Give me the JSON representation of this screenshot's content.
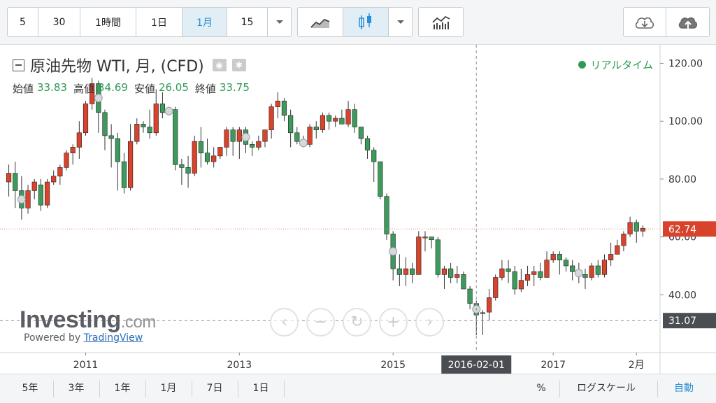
{
  "toolbar": {
    "intervals": [
      "5",
      "30",
      "1時間",
      "1日",
      "1月",
      "15"
    ],
    "active_interval": "1月",
    "dropdown_icon": "chevron-down-icon",
    "chart_type_icons": [
      "line-chart-icon",
      "candlestick-icon"
    ],
    "indicator_icon": "indicators-icon",
    "download_icon": "cloud-download-icon",
    "upload_icon": "cloud-upload-icon"
  },
  "legend": {
    "title": "原油先物 WTI, 月, (CFD)",
    "open_label": "始値",
    "open_value": "33.83",
    "high_label": "高値",
    "high_value": "34.69",
    "low_label": "安値",
    "low_value": "26.05",
    "close_label": "終値",
    "close_value": "33.75"
  },
  "realtime_label": "リアルタイム",
  "watermark": {
    "brand": "Investing",
    "brand_suffix": ".com",
    "powered_by": "Powered by",
    "powered_link": "TradingView"
  },
  "bottombar": {
    "ranges": [
      "5年",
      "3年",
      "1年",
      "1月",
      "7日",
      "1日"
    ],
    "percent": "%",
    "log_scale": "ログスケール",
    "auto": "自動"
  },
  "colors": {
    "up": "#d9432b",
    "down": "#3d9a5c",
    "accent": "#2a8fd6"
  },
  "chart_data": {
    "type": "candlestick",
    "y_axis_labels": [
      "120.00",
      "100.00",
      "80.00",
      "60.00",
      "40.00"
    ],
    "y_ticks": [
      120,
      100,
      80,
      60,
      40
    ],
    "ylim": [
      20,
      124
    ],
    "x_axis_labels": [
      "2011",
      "2013",
      "2015",
      "2016-02-01",
      "2017",
      "2月"
    ],
    "crosshair_label": "2016-02-01",
    "last_price": 62.74,
    "last_price_label": "62.74",
    "crosshair_price": 31.07,
    "crosshair_price_label": "31.07",
    "series": [
      {
        "o": 79,
        "h": 85,
        "l": 74,
        "c": 82
      },
      {
        "o": 82,
        "h": 86,
        "l": 70,
        "c": 76
      },
      {
        "o": 76,
        "h": 81,
        "l": 66,
        "c": 70
      },
      {
        "o": 70,
        "h": 78,
        "l": 68,
        "c": 76
      },
      {
        "o": 76,
        "h": 80,
        "l": 73,
        "c": 79
      },
      {
        "o": 78,
        "h": 80,
        "l": 69,
        "c": 71
      },
      {
        "o": 71,
        "h": 80,
        "l": 70,
        "c": 79
      },
      {
        "o": 79,
        "h": 83,
        "l": 78,
        "c": 81
      },
      {
        "o": 81,
        "h": 85,
        "l": 78,
        "c": 84
      },
      {
        "o": 84,
        "h": 90,
        "l": 83,
        "c": 89
      },
      {
        "o": 89,
        "h": 92,
        "l": 85,
        "c": 91
      },
      {
        "o": 91,
        "h": 100,
        "l": 87,
        "c": 96
      },
      {
        "o": 96,
        "h": 107,
        "l": 95,
        "c": 106
      },
      {
        "o": 106,
        "h": 115,
        "l": 104,
        "c": 113
      },
      {
        "o": 113,
        "h": 114,
        "l": 96,
        "c": 103
      },
      {
        "o": 103,
        "h": 104,
        "l": 90,
        "c": 95
      },
      {
        "o": 95,
        "h": 99,
        "l": 84,
        "c": 94
      },
      {
        "o": 94,
        "h": 96,
        "l": 76,
        "c": 86
      },
      {
        "o": 86,
        "h": 89,
        "l": 75,
        "c": 77
      },
      {
        "o": 77,
        "h": 99,
        "l": 76,
        "c": 93
      },
      {
        "o": 93,
        "h": 101,
        "l": 92,
        "c": 99
      },
      {
        "o": 99,
        "h": 100,
        "l": 96,
        "c": 98
      },
      {
        "o": 98,
        "h": 104,
        "l": 94,
        "c": 96
      },
      {
        "o": 96,
        "h": 111,
        "l": 95,
        "c": 106
      },
      {
        "o": 106,
        "h": 110,
        "l": 101,
        "c": 103
      },
      {
        "o": 103,
        "h": 105,
        "l": 102,
        "c": 104
      },
      {
        "o": 104,
        "h": 105,
        "l": 83,
        "c": 85
      },
      {
        "o": 85,
        "h": 87,
        "l": 78,
        "c": 84
      },
      {
        "o": 84,
        "h": 88,
        "l": 77,
        "c": 82
      },
      {
        "o": 82,
        "h": 95,
        "l": 81,
        "c": 93
      },
      {
        "o": 93,
        "h": 98,
        "l": 84,
        "c": 89
      },
      {
        "o": 89,
        "h": 94,
        "l": 85,
        "c": 86
      },
      {
        "o": 86,
        "h": 91,
        "l": 84,
        "c": 88
      },
      {
        "o": 88,
        "h": 91,
        "l": 87,
        "c": 91
      },
      {
        "o": 91,
        "h": 98,
        "l": 88,
        "c": 97
      },
      {
        "o": 97,
        "h": 98,
        "l": 88,
        "c": 93
      },
      {
        "o": 93,
        "h": 98,
        "l": 87,
        "c": 97
      },
      {
        "o": 97,
        "h": 98,
        "l": 89,
        "c": 92
      },
      {
        "o": 92,
        "h": 93,
        "l": 88,
        "c": 91
      },
      {
        "o": 91,
        "h": 95,
        "l": 90,
        "c": 93
      },
      {
        "o": 93,
        "h": 97,
        "l": 91,
        "c": 97
      },
      {
        "o": 97,
        "h": 106,
        "l": 94,
        "c": 105
      },
      {
        "o": 105,
        "h": 110,
        "l": 101,
        "c": 107
      },
      {
        "o": 107,
        "h": 108,
        "l": 100,
        "c": 102
      },
      {
        "o": 102,
        "h": 104,
        "l": 91,
        "c": 96
      },
      {
        "o": 96,
        "h": 98,
        "l": 92,
        "c": 93
      },
      {
        "o": 93,
        "h": 95,
        "l": 91,
        "c": 92
      },
      {
        "o": 92,
        "h": 99,
        "l": 91,
        "c": 98
      },
      {
        "o": 98,
        "h": 100,
        "l": 94,
        "c": 97
      },
      {
        "o": 97,
        "h": 103,
        "l": 96,
        "c": 102
      },
      {
        "o": 102,
        "h": 103,
        "l": 97,
        "c": 100
      },
      {
        "o": 100,
        "h": 102,
        "l": 98,
        "c": 101
      },
      {
        "o": 101,
        "h": 104,
        "l": 99,
        "c": 99
      },
      {
        "o": 99,
        "h": 107,
        "l": 98,
        "c": 104
      },
      {
        "o": 104,
        "h": 106,
        "l": 96,
        "c": 98
      },
      {
        "o": 98,
        "h": 98,
        "l": 92,
        "c": 94
      },
      {
        "o": 94,
        "h": 95,
        "l": 87,
        "c": 90
      },
      {
        "o": 90,
        "h": 91,
        "l": 79,
        "c": 86
      },
      {
        "o": 86,
        "h": 86,
        "l": 73,
        "c": 74
      },
      {
        "o": 74,
        "h": 75,
        "l": 59,
        "c": 61
      },
      {
        "o": 61,
        "h": 62,
        "l": 45,
        "c": 49
      },
      {
        "o": 49,
        "h": 54,
        "l": 43,
        "c": 47
      },
      {
        "o": 47,
        "h": 53,
        "l": 43,
        "c": 49
      },
      {
        "o": 49,
        "h": 51,
        "l": 44,
        "c": 47
      },
      {
        "o": 47,
        "h": 62,
        "l": 47,
        "c": 60
      },
      {
        "o": 60,
        "h": 62,
        "l": 55,
        "c": 60
      },
      {
        "o": 60,
        "h": 60,
        "l": 56,
        "c": 59
      },
      {
        "o": 59,
        "h": 60,
        "l": 46,
        "c": 47
      },
      {
        "o": 47,
        "h": 50,
        "l": 42,
        "c": 49
      },
      {
        "o": 49,
        "h": 51,
        "l": 44,
        "c": 46
      },
      {
        "o": 46,
        "h": 50,
        "l": 44,
        "c": 47
      },
      {
        "o": 47,
        "h": 48,
        "l": 43,
        "c": 42
      },
      {
        "o": 42,
        "h": 43,
        "l": 35,
        "c": 37
      },
      {
        "o": 37,
        "h": 38,
        "l": 26,
        "c": 33
      },
      {
        "o": 33.83,
        "h": 34.69,
        "l": 26.05,
        "c": 33.75
      },
      {
        "o": 34,
        "h": 42,
        "l": 31,
        "c": 39
      },
      {
        "o": 39,
        "h": 47,
        "l": 38,
        "c": 46
      },
      {
        "o": 46,
        "h": 52,
        "l": 45,
        "c": 49
      },
      {
        "o": 49,
        "h": 52,
        "l": 44,
        "c": 48
      },
      {
        "o": 48,
        "h": 50,
        "l": 40,
        "c": 42
      },
      {
        "o": 42,
        "h": 49,
        "l": 41,
        "c": 45
      },
      {
        "o": 45,
        "h": 50,
        "l": 43,
        "c": 47
      },
      {
        "o": 47,
        "h": 50,
        "l": 43,
        "c": 48
      },
      {
        "o": 48,
        "h": 51,
        "l": 45,
        "c": 46
      },
      {
        "o": 46,
        "h": 55,
        "l": 46,
        "c": 52
      },
      {
        "o": 52,
        "h": 55,
        "l": 51,
        "c": 54
      },
      {
        "o": 54,
        "h": 55,
        "l": 47,
        "c": 52
      },
      {
        "o": 52,
        "h": 53,
        "l": 48,
        "c": 50
      },
      {
        "o": 50,
        "h": 52,
        "l": 45,
        "c": 48
      },
      {
        "o": 48,
        "h": 51,
        "l": 44,
        "c": 47
      },
      {
        "o": 47,
        "h": 49,
        "l": 42,
        "c": 46
      },
      {
        "o": 46,
        "h": 51,
        "l": 45,
        "c": 50
      },
      {
        "o": 50,
        "h": 52,
        "l": 46,
        "c": 47
      },
      {
        "o": 47,
        "h": 54,
        "l": 46,
        "c": 52
      },
      {
        "o": 52,
        "h": 58,
        "l": 50,
        "c": 54
      },
      {
        "o": 54,
        "h": 59,
        "l": 54,
        "c": 57
      },
      {
        "o": 57,
        "h": 62,
        "l": 55,
        "c": 61
      },
      {
        "o": 61,
        "h": 67,
        "l": 60,
        "c": 65
      },
      {
        "o": 65,
        "h": 66,
        "l": 58,
        "c": 62
      },
      {
        "o": 62,
        "h": 64,
        "l": 60,
        "c": 63
      }
    ]
  }
}
